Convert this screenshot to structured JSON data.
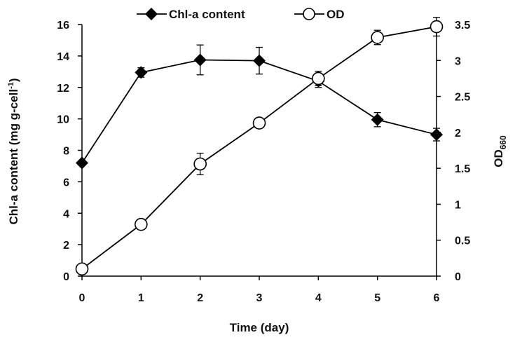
{
  "chart_data": {
    "type": "line",
    "x": [
      0,
      1,
      2,
      3,
      4,
      5,
      6
    ],
    "xlabel": "Time (day)",
    "ylabel_left": {
      "main": "Chl-a content  (mg g-cell",
      "sup": "-1",
      "end": ")"
    },
    "ylabel_right": {
      "main": "OD",
      "sub": "660"
    },
    "ylim_left": [
      0,
      16
    ],
    "ylim_right": [
      0,
      3.5
    ],
    "xlim": [
      0,
      6
    ],
    "yticks_left": [
      "0",
      "2",
      "4",
      "6",
      "8",
      "10",
      "12",
      "14",
      "16"
    ],
    "yticks_right": [
      "0",
      "0.5",
      "1",
      "1.5",
      "2",
      "2.5",
      "3",
      "3.5"
    ],
    "xticks": [
      "0",
      "1",
      "2",
      "3",
      "4",
      "5",
      "6"
    ],
    "grid": false,
    "legend_position": "top",
    "series": [
      {
        "name": "Chl-a content",
        "axis": "left",
        "marker": "diamond-filled",
        "color": "#000000",
        "values": [
          7.2,
          12.95,
          13.75,
          13.7,
          12.4,
          9.95,
          9.0
        ],
        "error": [
          0.0,
          0.3,
          0.95,
          0.85,
          0.4,
          0.45,
          0.4
        ]
      },
      {
        "name": "OD",
        "axis": "right",
        "marker": "circle-open",
        "color": "#000000",
        "values": [
          0.1,
          0.72,
          1.56,
          2.13,
          2.75,
          3.32,
          3.47
        ],
        "error": [
          0.0,
          0.0,
          0.15,
          0.0,
          0.1,
          0.1,
          0.13
        ]
      }
    ]
  }
}
